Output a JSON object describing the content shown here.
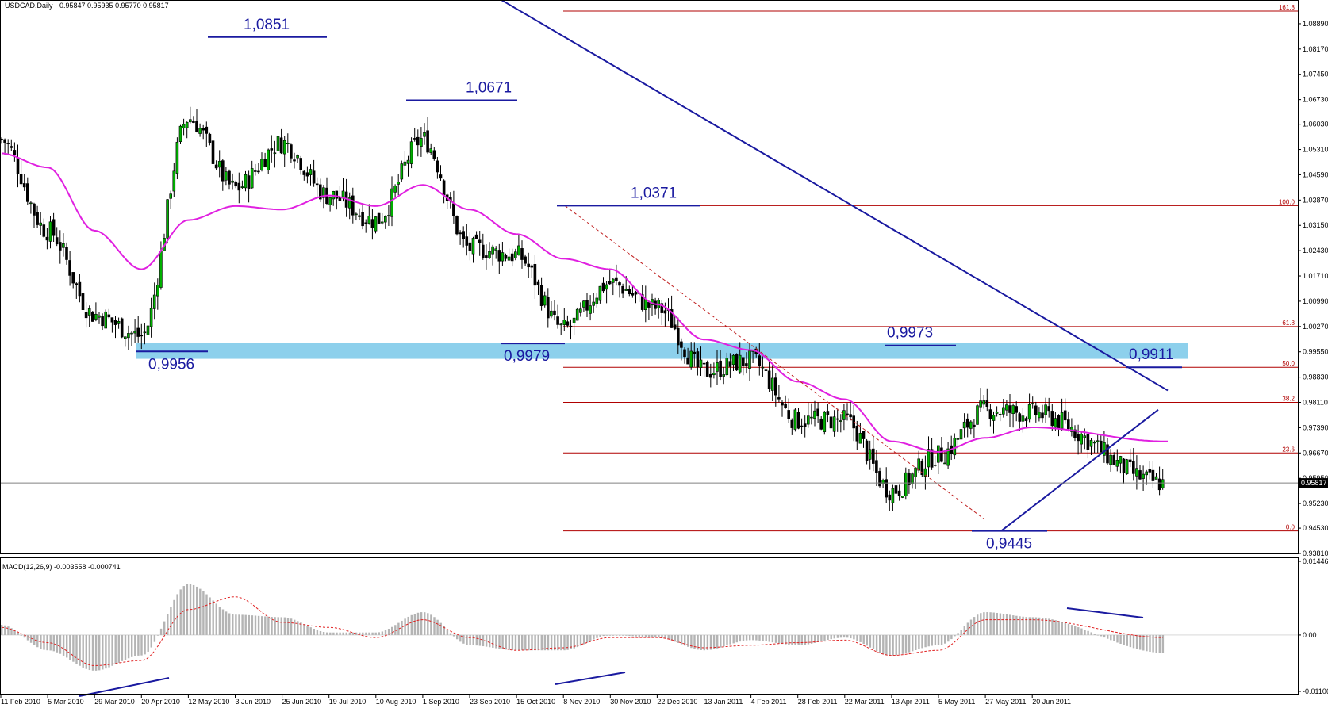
{
  "header": {
    "symbol": "USDCAD,Daily",
    "ohlc": "0.95847 0.95935 0.95770 0.95817"
  },
  "macd_header": "MACD(12,26,9) -0.003558 -0.000741",
  "current_price": "0.95817",
  "chart_data": [
    {
      "type": "candlestick",
      "title": "USDCAD,Daily",
      "ylim": [
        0.9381,
        1.0925
      ],
      "y_ticks": [
        "1.08890",
        "1.08170",
        "1.07450",
        "1.06730",
        "1.06030",
        "1.05310",
        "1.04590",
        "1.03870",
        "1.03150",
        "1.02430",
        "1.01710",
        "1.00990",
        "1.00270",
        "0.99550",
        "0.98830",
        "0.98110",
        "0.97390",
        "0.96670",
        "0.95950",
        "0.95230",
        "0.94530",
        "0.93810"
      ],
      "x_labels": [
        "11 Feb 2010",
        "5 Mar 2010",
        "29 Mar 2010",
        "20 Apr 2010",
        "12 May 2010",
        "3 Jun 2010",
        "25 Jun 2010",
        "19 Jul 2010",
        "10 Aug 2010",
        "1 Sep 2010",
        "23 Sep 2010",
        "15 Oct 2010",
        "8 Nov 2010",
        "30 Nov 2010",
        "22 Dec 2010",
        "13 Jan 2011",
        "4 Feb 2011",
        "28 Feb 2011",
        "22 Mar 2011",
        "13 Apr 2011",
        "5 May 2011",
        "27 May 2011",
        "20 Jun 2011"
      ],
      "price_path": [
        {
          "date": "11 Feb 2010",
          "close": 1.056
        },
        {
          "date": "5 Mar 2010",
          "close": 1.03
        },
        {
          "date": "29 Mar 2010",
          "close": 1.006
        },
        {
          "date": "20 Apr 2010",
          "close": 1.0
        },
        {
          "date": "12 May 2010",
          "close": 1.062
        },
        {
          "date": "3 Jun 2010",
          "close": 1.042
        },
        {
          "date": "25 Jun 2010",
          "close": 1.055
        },
        {
          "date": "19 Jul 2010",
          "close": 1.04
        },
        {
          "date": "10 Aug 2010",
          "close": 1.033
        },
        {
          "date": "1 Sep 2010",
          "close": 1.056
        },
        {
          "date": "23 Sep 2010",
          "close": 1.025
        },
        {
          "date": "15 Oct 2010",
          "close": 1.023
        },
        {
          "date": "8 Nov 2010",
          "close": 1.002
        },
        {
          "date": "30 Nov 2010",
          "close": 1.015
        },
        {
          "date": "22 Dec 2010",
          "close": 1.008
        },
        {
          "date": "13 Jan 2011",
          "close": 0.99
        },
        {
          "date": "4 Feb 2011",
          "close": 0.993
        },
        {
          "date": "28 Feb 2011",
          "close": 0.976
        },
        {
          "date": "22 Mar 2011",
          "close": 0.976
        },
        {
          "date": "13 Apr 2011",
          "close": 0.956
        },
        {
          "date": "5 May 2011",
          "close": 0.966
        },
        {
          "date": "27 May 2011",
          "close": 0.979
        },
        {
          "date": "20 Jun 2011",
          "close": 0.978
        },
        {
          "date": "end",
          "close": 0.95817
        }
      ],
      "moving_average": {
        "color": "#e020e0",
        "points": [
          {
            "date": "11 Feb 2010",
            "value": 1.052
          },
          {
            "date": "5 Mar 2010",
            "value": 1.048
          },
          {
            "date": "29 Mar 2010",
            "value": 1.03
          },
          {
            "date": "20 Apr 2010",
            "value": 1.019
          },
          {
            "date": "12 May 2010",
            "value": 1.033
          },
          {
            "date": "3 Jun 2010",
            "value": 1.037
          },
          {
            "date": "25 Jun 2010",
            "value": 1.036
          },
          {
            "date": "19 Jul 2010",
            "value": 1.04
          },
          {
            "date": "10 Aug 2010",
            "value": 1.037
          },
          {
            "date": "1 Sep 2010",
            "value": 1.043
          },
          {
            "date": "23 Sep 2010",
            "value": 1.036
          },
          {
            "date": "15 Oct 2010",
            "value": 1.029
          },
          {
            "date": "8 Nov 2010",
            "value": 1.022
          },
          {
            "date": "30 Nov 2010",
            "value": 1.019
          },
          {
            "date": "22 Dec 2010",
            "value": 1.009
          },
          {
            "date": "13 Jan 2011",
            "value": 0.999
          },
          {
            "date": "4 Feb 2011",
            "value": 0.996
          },
          {
            "date": "28 Feb 2011",
            "value": 0.987
          },
          {
            "date": "22 Mar 2011",
            "value": 0.982
          },
          {
            "date": "13 Apr 2011",
            "value": 0.97
          },
          {
            "date": "5 May 2011",
            "value": 0.967
          },
          {
            "date": "27 May 2011",
            "value": 0.971
          },
          {
            "date": "20 Jun 2011",
            "value": 0.974
          },
          {
            "date": "end",
            "value": 0.97
          }
        ]
      },
      "support_zone": {
        "from": 0.9935,
        "to": 0.998,
        "color": "#87ceeb"
      },
      "annotations": [
        {
          "text": "1,0851",
          "value": 1.0851,
          "date": "12 May 2010"
        },
        {
          "text": "1,0671",
          "value": 1.0671,
          "date": "10 Aug 2010"
        },
        {
          "text": "1,0371",
          "value": 1.0371,
          "date": "15 Oct 2010"
        },
        {
          "text": "0,9956",
          "value": 0.9956,
          "date": "29 Mar 2010"
        },
        {
          "text": "0,9979",
          "value": 0.9979,
          "date": "23 Sep 2010"
        },
        {
          "text": "0,9973",
          "value": 0.9973,
          "date": "28 Feb 2011"
        },
        {
          "text": "0,9911",
          "value": 0.9911,
          "date": "20 Jun 2011"
        },
        {
          "text": "0,9445",
          "value": 0.9445,
          "date": "13 Apr 2011"
        }
      ],
      "fibonacci": {
        "color": "#b00000",
        "levels": [
          {
            "label": "161.8",
            "value": 1.0925
          },
          {
            "label": "100.0",
            "value": 1.0371
          },
          {
            "label": "61.8",
            "value": 1.0027
          },
          {
            "label": "50.0",
            "value": 0.9911
          },
          {
            "label": "38.2",
            "value": 0.9811
          },
          {
            "label": "23.6",
            "value": 0.9667
          },
          {
            "label": "0.0",
            "value": 0.9445
          }
        ]
      }
    },
    {
      "type": "histogram",
      "title": "MACD(12,26,9) -0.003558 -0.000741",
      "ylim": [
        -0.01106,
        0.01446
      ],
      "y_ticks": [
        "0.014462",
        "0.00",
        "-0.01106"
      ],
      "series": [
        {
          "name": "MACD",
          "points": [
            {
              "date": "11 Feb 2010",
              "value": 0.002
            },
            {
              "date": "5 Mar 2010",
              "value": -0.003
            },
            {
              "date": "29 Mar 2010",
              "value": -0.007
            },
            {
              "date": "20 Apr 2010",
              "value": -0.004
            },
            {
              "date": "12 May 2010",
              "value": 0.01
            },
            {
              "date": "3 Jun 2010",
              "value": 0.004
            },
            {
              "date": "25 Jun 2010",
              "value": 0.0035
            },
            {
              "date": "19 Jul 2010",
              "value": 0.0005
            },
            {
              "date": "10 Aug 2010",
              "value": 0.0005
            },
            {
              "date": "1 Sep 2010",
              "value": 0.0045
            },
            {
              "date": "23 Sep 2010",
              "value": -0.002
            },
            {
              "date": "15 Oct 2010",
              "value": -0.003
            },
            {
              "date": "8 Nov 2010",
              "value": -0.003
            },
            {
              "date": "30 Nov 2010",
              "value": 0.0
            },
            {
              "date": "22 Dec 2010",
              "value": -0.0005
            },
            {
              "date": "13 Jan 2011",
              "value": -0.003
            },
            {
              "date": "4 Feb 2011",
              "value": -0.001
            },
            {
              "date": "28 Feb 2011",
              "value": -0.002
            },
            {
              "date": "22 Mar 2011",
              "value": -0.0005
            },
            {
              "date": "13 Apr 2011",
              "value": -0.004
            },
            {
              "date": "5 May 2011",
              "value": -0.002
            },
            {
              "date": "27 May 2011",
              "value": 0.0045
            },
            {
              "date": "20 Jun 2011",
              "value": 0.0035
            },
            {
              "date": "end",
              "value": -0.0035
            }
          ]
        },
        {
          "name": "Signal",
          "points": [
            {
              "date": "11 Feb 2010",
              "value": 0.0015
            },
            {
              "date": "5 Mar 2010",
              "value": -0.0015
            },
            {
              "date": "29 Mar 2010",
              "value": -0.006
            },
            {
              "date": "20 Apr 2010",
              "value": -0.005
            },
            {
              "date": "12 May 2010",
              "value": 0.005
            },
            {
              "date": "3 Jun 2010",
              "value": 0.0075
            },
            {
              "date": "25 Jun 2010",
              "value": 0.0025
            },
            {
              "date": "19 Jul 2010",
              "value": 0.0015
            },
            {
              "date": "10 Aug 2010",
              "value": -0.0005
            },
            {
              "date": "1 Sep 2010",
              "value": 0.003
            },
            {
              "date": "23 Sep 2010",
              "value": -0.0005
            },
            {
              "date": "15 Oct 2010",
              "value": -0.003
            },
            {
              "date": "8 Nov 2010",
              "value": -0.0025
            },
            {
              "date": "30 Nov 2010",
              "value": -0.0005
            },
            {
              "date": "22 Dec 2010",
              "value": -0.0005
            },
            {
              "date": "13 Jan 2011",
              "value": -0.0025
            },
            {
              "date": "4 Feb 2011",
              "value": -0.002
            },
            {
              "date": "28 Feb 2011",
              "value": -0.0015
            },
            {
              "date": "22 Mar 2011",
              "value": -0.001
            },
            {
              "date": "13 Apr 2011",
              "value": -0.004
            },
            {
              "date": "5 May 2011",
              "value": -0.003
            },
            {
              "date": "27 May 2011",
              "value": 0.003
            },
            {
              "date": "20 Jun 2011",
              "value": 0.003
            },
            {
              "date": "end",
              "value": -0.0005
            }
          ]
        }
      ]
    }
  ]
}
